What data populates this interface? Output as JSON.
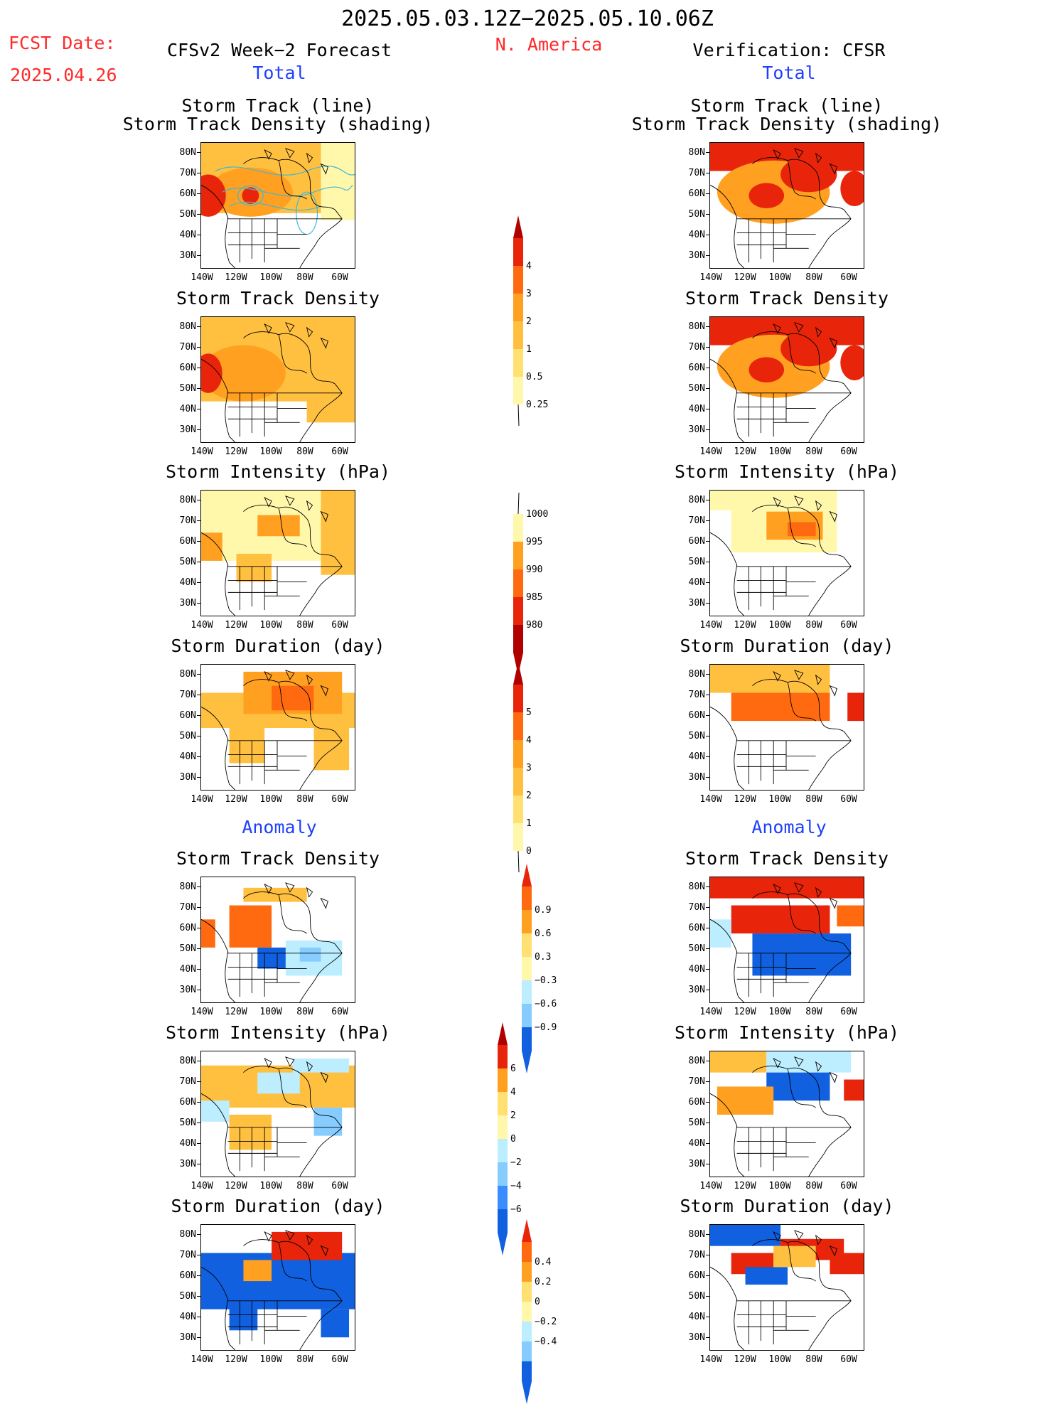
{
  "header": {
    "date_range": "2025.05.03.12Z−2025.05.10.06Z",
    "fcst_label": "FCST Date:",
    "fcst_date": "2025.04.26",
    "left_title": "CFSv2 Week−2 Forecast",
    "region": "N. America",
    "right_title": "Verification: CFSR"
  },
  "sections": {
    "total": "Total",
    "anomaly": "Anomaly"
  },
  "panel_titles": {
    "track_line": "Storm Track (line)",
    "track_shading": "Storm Track Density (shading)",
    "density": "Storm Track Density",
    "intensity": "Storm Intensity (hPa)",
    "duration": "Storm Duration (day)"
  },
  "axes": {
    "lat_labels": [
      "80N",
      "70N",
      "60N",
      "50N",
      "40N",
      "30N"
    ],
    "lon_labels": [
      "140W",
      "120W",
      "100W",
      "80W",
      "60W"
    ]
  },
  "colorbars": {
    "density_total": [
      "4",
      "3",
      "2",
      "1",
      "0.5",
      "0.25"
    ],
    "intensity_total": [
      "1000",
      "995",
      "990",
      "985",
      "980"
    ],
    "duration_total": [
      "5",
      "4",
      "3",
      "2",
      "1",
      "0"
    ],
    "density_anom": [
      "0.9",
      "0.6",
      "0.3",
      "−0.3",
      "−0.6",
      "−0.9"
    ],
    "intensity_anom": [
      "6",
      "4",
      "2",
      "0",
      "−2",
      "−4",
      "−6"
    ],
    "duration_anom": [
      "0.4",
      "0.2",
      "0",
      "−0.2",
      "−0.4"
    ]
  },
  "colors": {
    "pale_yellow": "#fff7aa",
    "light_yellow": "#ffe070",
    "orange_light": "#ffc040",
    "orange": "#ffa020",
    "orange_red": "#ff6a10",
    "red": "#e8250a",
    "dark_red": "#b00000",
    "light_blue": "#bdeeff",
    "sky_blue": "#86ccff",
    "blue": "#3a8cff",
    "dark_blue": "#1060e0",
    "title_red": "#ff2a2a",
    "title_blue": "#1f3fff"
  }
}
